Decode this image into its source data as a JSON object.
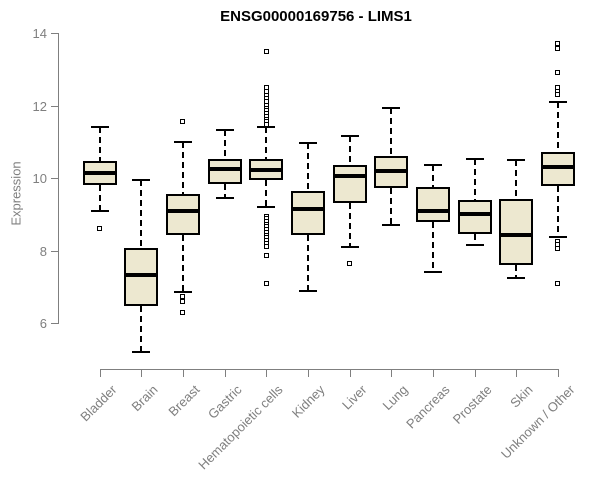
{
  "title": "ENSG00000169756 - LIMS1",
  "ylabel": "Expression",
  "colors": {
    "box_fill": "#ede8d0",
    "box_border": "#000000",
    "median": "#000000",
    "axis": "#7f7f7f",
    "text_gray": "#7f7f7f",
    "title": "#000000",
    "background": "#ffffff"
  },
  "chart_data": {
    "type": "boxplot",
    "title": "ENSG00000169756 - LIMS1",
    "xlabel": "",
    "ylabel": "Expression",
    "ylim": [
      5.0,
      14.1
    ],
    "yticks": [
      6,
      8,
      10,
      12,
      14
    ],
    "grid": false,
    "legend": "none",
    "categories": [
      "Bladder",
      "Brain",
      "Breast",
      "Gastric",
      "Hematopoietic cells",
      "Kidney",
      "Liver",
      "Lung",
      "Pancreas",
      "Prostate",
      "Skin",
      "Unknown / Other"
    ],
    "series": [
      {
        "name": "Bladder",
        "whisker_low": 9.1,
        "q1": 9.82,
        "median": 10.15,
        "q3": 10.47,
        "whisker_high": 11.4,
        "outliers": [
          8.6
        ]
      },
      {
        "name": "Brain",
        "whisker_low": 5.2,
        "q1": 6.48,
        "median": 7.33,
        "q3": 8.06,
        "whisker_high": 9.95,
        "outliers": []
      },
      {
        "name": "Breast",
        "whisker_low": 6.85,
        "q1": 8.43,
        "median": 9.1,
        "q3": 9.56,
        "whisker_high": 11.0,
        "outliers": [
          11.55,
          6.72,
          6.6,
          6.3
        ]
      },
      {
        "name": "Gastric",
        "whisker_low": 9.45,
        "q1": 9.83,
        "median": 10.25,
        "q3": 10.52,
        "whisker_high": 11.32,
        "outliers": []
      },
      {
        "name": "Hematopoietic cells",
        "whisker_low": 9.2,
        "q1": 9.94,
        "median": 10.23,
        "q3": 10.52,
        "whisker_high": 11.4,
        "outliers": [
          13.5,
          12.5,
          12.38,
          12.28,
          12.18,
          12.1,
          12.0,
          11.92,
          11.85,
          11.78,
          11.7,
          11.62,
          11.55,
          11.48,
          8.95,
          8.88,
          8.8,
          8.72,
          8.65,
          8.58,
          8.5,
          8.42,
          8.35,
          8.28,
          8.2,
          8.12,
          7.85,
          7.1
        ]
      },
      {
        "name": "Kidney",
        "whisker_low": 6.88,
        "q1": 8.43,
        "median": 9.15,
        "q3": 9.64,
        "whisker_high": 10.97,
        "outliers": []
      },
      {
        "name": "Liver",
        "whisker_low": 8.1,
        "q1": 9.3,
        "median": 10.05,
        "q3": 10.35,
        "whisker_high": 11.15,
        "outliers": [
          7.65
        ]
      },
      {
        "name": "Lung",
        "whisker_low": 8.7,
        "q1": 9.72,
        "median": 10.2,
        "q3": 10.6,
        "whisker_high": 11.92,
        "outliers": []
      },
      {
        "name": "Pancreas",
        "whisker_low": 7.4,
        "q1": 8.78,
        "median": 9.08,
        "q3": 9.75,
        "whisker_high": 10.37,
        "outliers": []
      },
      {
        "name": "Prostate",
        "whisker_low": 8.15,
        "q1": 8.46,
        "median": 9.02,
        "q3": 9.4,
        "whisker_high": 10.52,
        "outliers": []
      },
      {
        "name": "Skin",
        "whisker_low": 7.25,
        "q1": 7.6,
        "median": 8.44,
        "q3": 9.42,
        "whisker_high": 10.5,
        "outliers": []
      },
      {
        "name": "Unknown / Other",
        "whisker_low": 8.36,
        "q1": 9.77,
        "median": 10.3,
        "q3": 10.71,
        "whisker_high": 12.1,
        "outliers": [
          13.72,
          13.58,
          12.92,
          12.5,
          12.4,
          12.3,
          8.25,
          8.16,
          8.06,
          7.1
        ]
      }
    ]
  }
}
